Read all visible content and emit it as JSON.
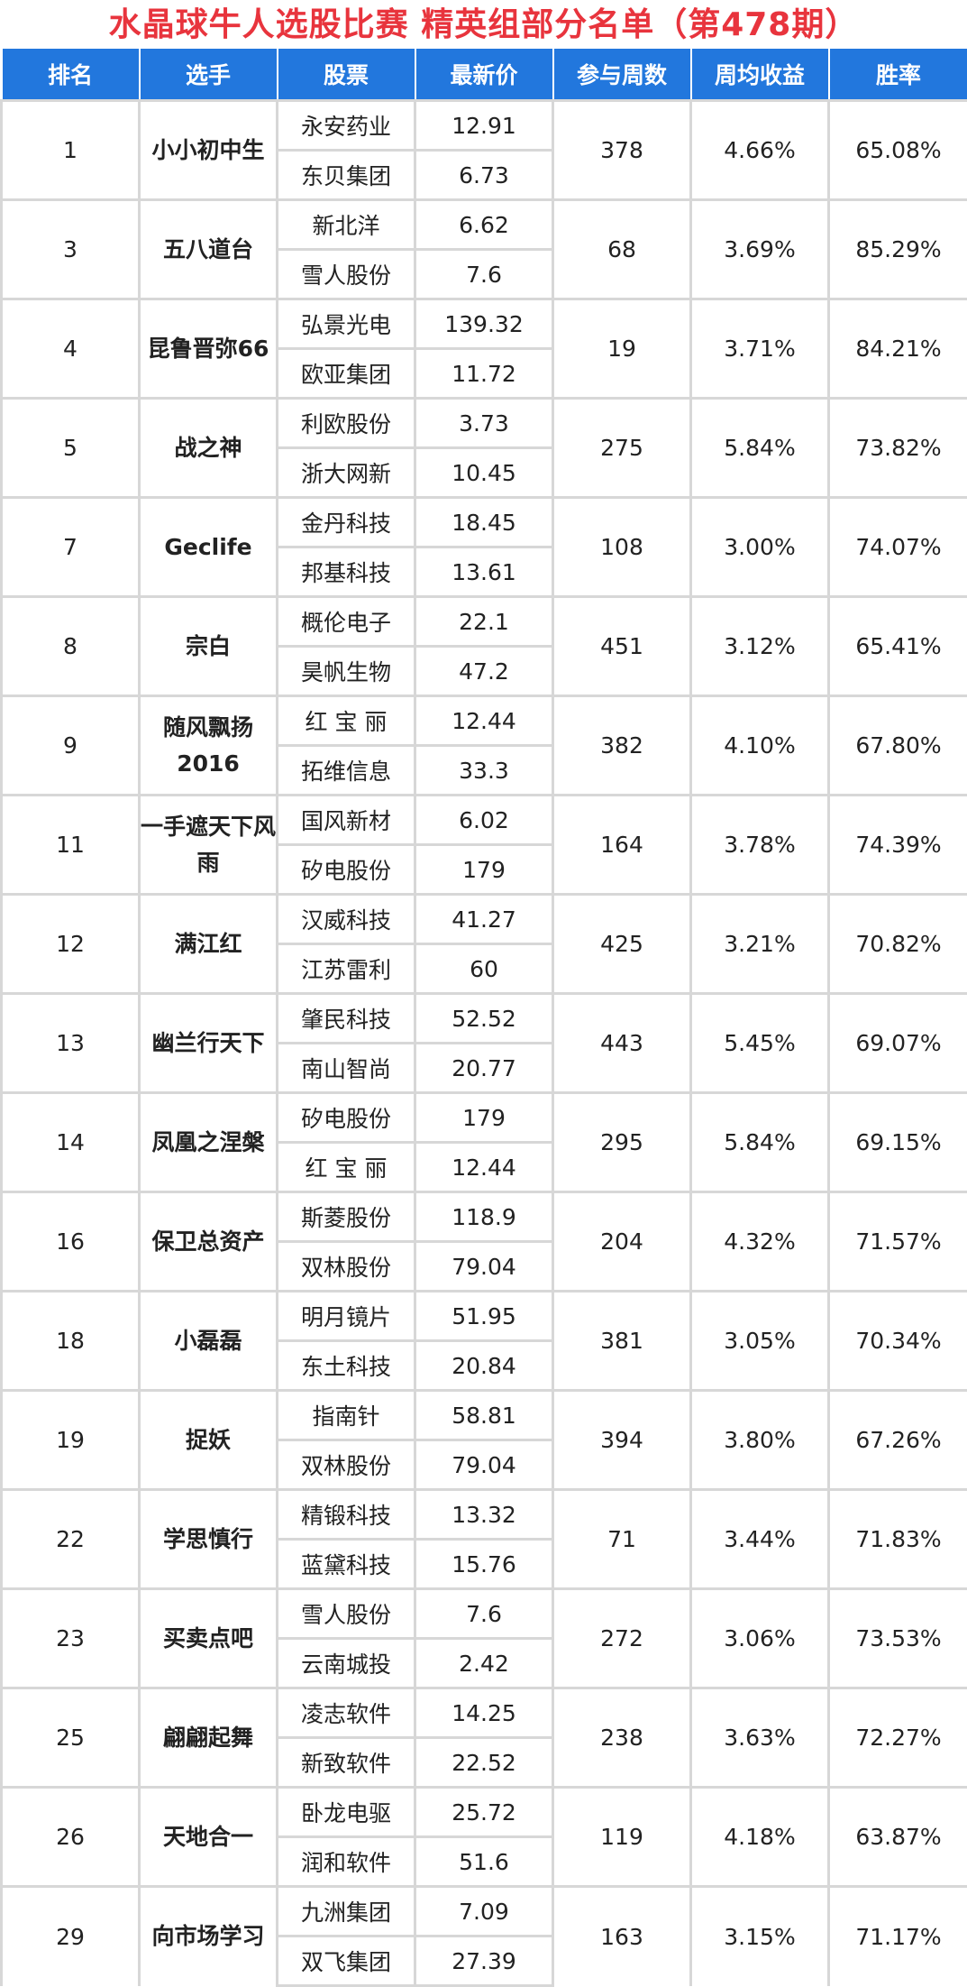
{
  "title": "水晶球牛人选股比赛  精英组部分名单（第478期）",
  "columns": [
    "排名",
    "选手",
    "股票",
    "最新价",
    "参与周数",
    "周均收益",
    "胜率"
  ],
  "colors": {
    "header_bg": "#2277dd",
    "title": "#e8343d",
    "yield": "#e8343d"
  },
  "rows": [
    {
      "rank": "1",
      "player": "小小初中生",
      "stocks": [
        {
          "name": "永安药业",
          "price": "12.91"
        },
        {
          "name": "东贝集团",
          "price": "6.73"
        }
      ],
      "weeks": "378",
      "yield": "4.66%",
      "winrate": "65.08%"
    },
    {
      "rank": "3",
      "player": "五八道台",
      "stocks": [
        {
          "name": "新北洋",
          "price": "6.62"
        },
        {
          "name": "雪人股份",
          "price": "7.6"
        }
      ],
      "weeks": "68",
      "yield": "3.69%",
      "winrate": "85.29%"
    },
    {
      "rank": "4",
      "player": "昆鲁晋弥66",
      "stocks": [
        {
          "name": "弘景光电",
          "price": "139.32"
        },
        {
          "name": "欧亚集团",
          "price": "11.72"
        }
      ],
      "weeks": "19",
      "yield": "3.71%",
      "winrate": "84.21%"
    },
    {
      "rank": "5",
      "player": "战之神",
      "stocks": [
        {
          "name": "利欧股份",
          "price": "3.73"
        },
        {
          "name": "浙大网新",
          "price": "10.45"
        }
      ],
      "weeks": "275",
      "yield": "5.84%",
      "winrate": "73.82%"
    },
    {
      "rank": "7",
      "player": "Geclife",
      "stocks": [
        {
          "name": "金丹科技",
          "price": "18.45"
        },
        {
          "name": "邦基科技",
          "price": "13.61"
        }
      ],
      "weeks": "108",
      "yield": "3.00%",
      "winrate": "74.07%"
    },
    {
      "rank": "8",
      "player": "宗白",
      "stocks": [
        {
          "name": "概伦电子",
          "price": "22.1"
        },
        {
          "name": "昊帆生物",
          "price": "47.2"
        }
      ],
      "weeks": "451",
      "yield": "3.12%",
      "winrate": "65.41%"
    },
    {
      "rank": "9",
      "player": "随风飘扬2016",
      "stocks": [
        {
          "name": "红 宝 丽",
          "price": "12.44"
        },
        {
          "name": "拓维信息",
          "price": "33.3"
        }
      ],
      "weeks": "382",
      "yield": "4.10%",
      "winrate": "67.80%"
    },
    {
      "rank": "11",
      "player": "一手遮天下风雨",
      "stocks": [
        {
          "name": "国风新材",
          "price": "6.02"
        },
        {
          "name": "矽电股份",
          "price": "179"
        }
      ],
      "weeks": "164",
      "yield": "3.78%",
      "winrate": "74.39%"
    },
    {
      "rank": "12",
      "player": "满江红",
      "stocks": [
        {
          "name": "汉威科技",
          "price": "41.27"
        },
        {
          "name": "江苏雷利",
          "price": "60"
        }
      ],
      "weeks": "425",
      "yield": "3.21%",
      "winrate": "70.82%"
    },
    {
      "rank": "13",
      "player": "幽兰行天下",
      "stocks": [
        {
          "name": "肇民科技",
          "price": "52.52"
        },
        {
          "name": "南山智尚",
          "price": "20.77"
        }
      ],
      "weeks": "443",
      "yield": "5.45%",
      "winrate": "69.07%"
    },
    {
      "rank": "14",
      "player": "凤凰之涅槃",
      "stocks": [
        {
          "name": "矽电股份",
          "price": "179"
        },
        {
          "name": "红 宝 丽",
          "price": "12.44"
        }
      ],
      "weeks": "295",
      "yield": "5.84%",
      "winrate": "69.15%"
    },
    {
      "rank": "16",
      "player": "保卫总资产",
      "stocks": [
        {
          "name": "斯菱股份",
          "price": "118.9"
        },
        {
          "name": "双林股份",
          "price": "79.04"
        }
      ],
      "weeks": "204",
      "yield": "4.32%",
      "winrate": "71.57%"
    },
    {
      "rank": "18",
      "player": "小磊磊",
      "stocks": [
        {
          "name": "明月镜片",
          "price": "51.95"
        },
        {
          "name": "东土科技",
          "price": "20.84"
        }
      ],
      "weeks": "381",
      "yield": "3.05%",
      "winrate": "70.34%"
    },
    {
      "rank": "19",
      "player": "捉妖",
      "stocks": [
        {
          "name": "指南针",
          "price": "58.81"
        },
        {
          "name": "双林股份",
          "price": "79.04"
        }
      ],
      "weeks": "394",
      "yield": "3.80%",
      "winrate": "67.26%"
    },
    {
      "rank": "22",
      "player": "学思慎行",
      "stocks": [
        {
          "name": "精锻科技",
          "price": "13.32"
        },
        {
          "name": "蓝黛科技",
          "price": "15.76"
        }
      ],
      "weeks": "71",
      "yield": "3.44%",
      "winrate": "71.83%"
    },
    {
      "rank": "23",
      "player": "买卖点吧",
      "stocks": [
        {
          "name": "雪人股份",
          "price": "7.6"
        },
        {
          "name": "云南城投",
          "price": "2.42"
        }
      ],
      "weeks": "272",
      "yield": "3.06%",
      "winrate": "73.53%"
    },
    {
      "rank": "25",
      "player": "翩翩起舞",
      "stocks": [
        {
          "name": "凌志软件",
          "price": "14.25"
        },
        {
          "name": "新致软件",
          "price": "22.52"
        }
      ],
      "weeks": "238",
      "yield": "3.63%",
      "winrate": "72.27%"
    },
    {
      "rank": "26",
      "player": "天地合一",
      "stocks": [
        {
          "name": "卧龙电驱",
          "price": "25.72"
        },
        {
          "name": "润和软件",
          "price": "51.6"
        }
      ],
      "weeks": "119",
      "yield": "4.18%",
      "winrate": "63.87%"
    },
    {
      "rank": "29",
      "player": "向市场学习",
      "stocks": [
        {
          "name": "九洲集团",
          "price": "7.09"
        },
        {
          "name": "双飞集团",
          "price": "27.39"
        }
      ],
      "weeks": "163",
      "yield": "3.15%",
      "winrate": "71.17%"
    }
  ]
}
